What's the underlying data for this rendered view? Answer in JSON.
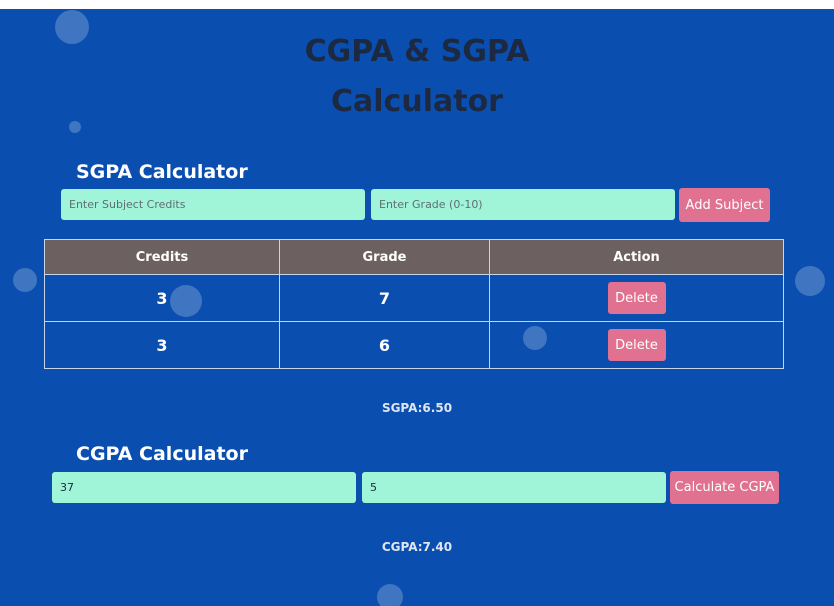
{
  "header": {
    "title_line1": "CGPA & SGPA",
    "title_line2": "Calculator"
  },
  "sgpa": {
    "heading": "SGPA Calculator",
    "credits_placeholder": "Enter Subject Credits",
    "grade_placeholder": "Enter Grade (0-10)",
    "add_label": "Add Subject",
    "columns": [
      "Credits",
      "Grade",
      "Action"
    ],
    "rows": [
      {
        "credits": "3",
        "grade": "7",
        "action": "Delete"
      },
      {
        "credits": "3",
        "grade": "6",
        "action": "Delete"
      }
    ],
    "result": "SGPA:6.50"
  },
  "cgpa": {
    "heading": "CGPA Calculator",
    "field1_value": "37",
    "field2_value": "5",
    "calc_label": "Calculate CGPA",
    "result": "CGPA:7.40"
  },
  "colors": {
    "background": "#0a4fb0",
    "input_bg": "#a0f4d8",
    "button_bg": "#e17191",
    "table_header_bg": "#6d6060"
  }
}
